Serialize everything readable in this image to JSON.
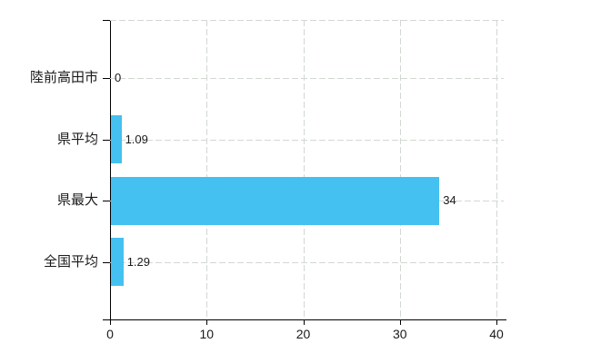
{
  "chart_data": {
    "type": "bar",
    "orientation": "horizontal",
    "title": "",
    "xlabel": "",
    "ylabel": "",
    "categories": [
      "陸前高田市",
      "県平均",
      "県最大",
      "全国平均"
    ],
    "values": [
      0,
      1.09,
      34,
      1.29
    ],
    "value_labels": [
      "0",
      "1.09",
      "34",
      "1.29"
    ],
    "xlim": [
      0,
      40
    ],
    "x_ticks": [
      0,
      10,
      20,
      30,
      40
    ],
    "x_tick_labels": [
      "0",
      "10",
      "20",
      "30",
      "40"
    ],
    "grid": true,
    "legend": false,
    "colors": {
      "bar": "#44c1f0",
      "grid": "#d2d8d2",
      "axis": "#000000",
      "text": "#1a1a1a",
      "background": "#ffffff"
    }
  }
}
